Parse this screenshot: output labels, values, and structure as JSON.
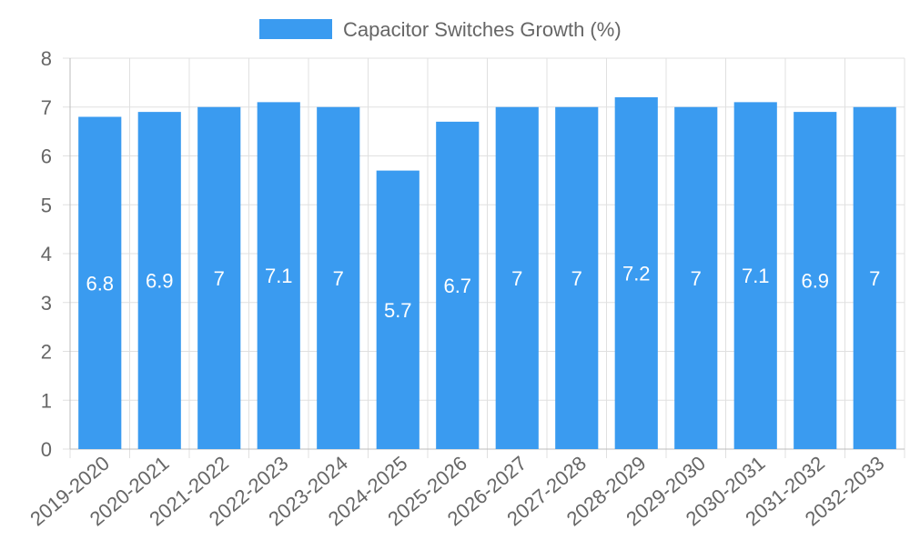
{
  "chart_data": {
    "type": "bar",
    "title": "",
    "xlabel": "",
    "ylabel": "",
    "categories": [
      "2019-2020",
      "2020-2021",
      "2021-2022",
      "2022-2023",
      "2023-2024",
      "2024-2025",
      "2025-2026",
      "2026-2027",
      "2027-2028",
      "2028-2029",
      "2029-2030",
      "2030-2031",
      "2031-2032",
      "2032-2033"
    ],
    "series": [
      {
        "name": "Capacitor Switches Growth (%)",
        "values": [
          6.8,
          6.9,
          7,
          7.1,
          7,
          5.7,
          6.7,
          7,
          7,
          7.2,
          7,
          7.1,
          6.9,
          7
        ],
        "color": "#3a9bf0"
      }
    ],
    "ylim": [
      0,
      8
    ],
    "yticks": [
      0,
      1,
      2,
      3,
      4,
      5,
      6,
      7,
      8
    ],
    "grid": true,
    "legend": "top-center",
    "data_labels": [
      "6.8",
      "6.9",
      "7",
      "7.1",
      "7",
      "5.7",
      "6.7",
      "7",
      "7",
      "7.2",
      "7",
      "7.1",
      "6.9",
      "7"
    ]
  }
}
